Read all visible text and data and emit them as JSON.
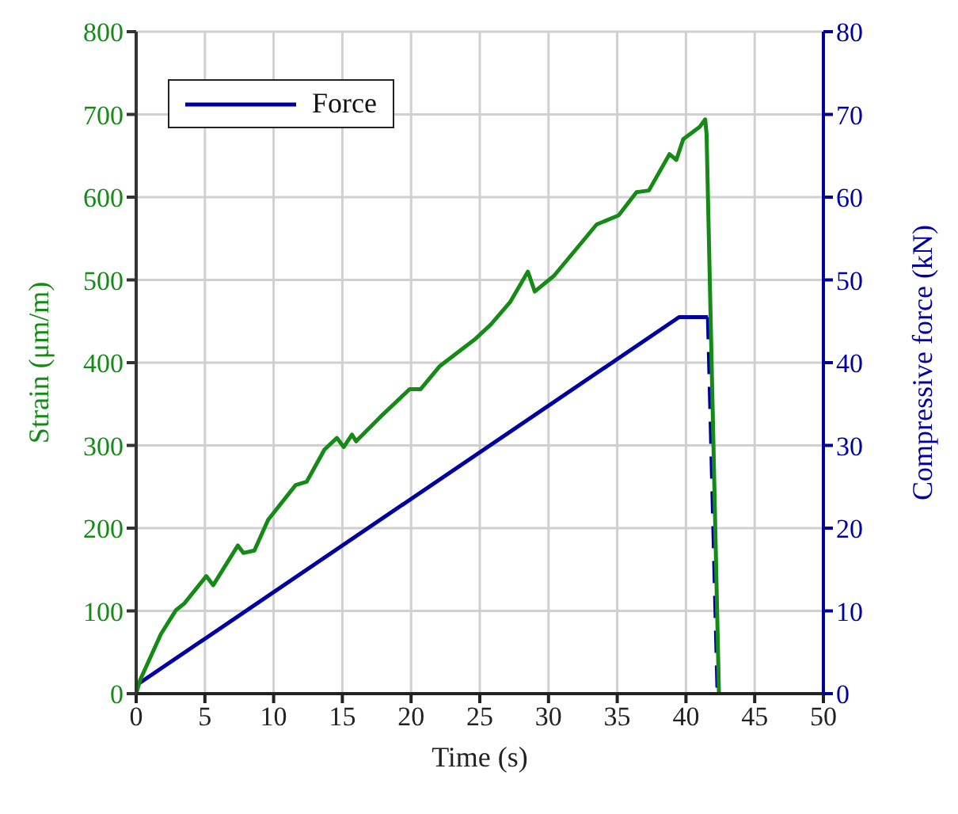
{
  "chart_data": {
    "type": "line",
    "xlabel": "Time (s)",
    "ylabel": "Strain (μm/m)",
    "y2label": "Compressive force (kN)",
    "xlim": [
      0,
      50
    ],
    "xticks": [
      0,
      5,
      10,
      15,
      20,
      25,
      30,
      35,
      40,
      45,
      50
    ],
    "ylim": [
      0,
      800
    ],
    "yticks": [
      0,
      100,
      200,
      300,
      400,
      500,
      600,
      700,
      800
    ],
    "y2lim": [
      0,
      80
    ],
    "y2ticks": [
      0,
      10,
      20,
      30,
      40,
      50,
      60,
      70,
      80
    ],
    "grid": true,
    "legend": "top left",
    "marker": "none",
    "series": [
      {
        "name": "Force",
        "color": "#0000a0",
        "axis": "y2",
        "line_style": "solid",
        "x": [
          0,
          39.5,
          41.6
        ],
        "values": [
          1,
          45.5,
          45.5
        ]
      },
      {
        "color": "#0000a0",
        "axis": "y2",
        "line_style": "dashed",
        "x": [
          41.6,
          42.3
        ],
        "values": [
          45.5,
          0
        ]
      },
      {
        "color": "#168a16",
        "axis": "y",
        "line_style": "solid",
        "x": [
          0,
          0.3,
          1.8,
          2.9,
          3.5,
          5.1,
          5.6,
          7.4,
          7.8,
          8.6,
          9.6,
          11.6,
          12.4,
          13.7,
          14.6,
          15.1,
          15.7,
          16,
          17.8,
          19.9,
          20.7,
          22.1,
          24.7,
          25.8,
          27.2,
          28.5,
          29,
          30.4,
          33.5,
          35.1,
          36.4,
          37.3,
          38.8,
          39.3,
          39.8,
          41,
          41.4,
          41.5,
          42.4
        ],
        "values": [
          0,
          17,
          72,
          101,
          109,
          142,
          131,
          179,
          170,
          173,
          210,
          252,
          256,
          295,
          309,
          298,
          313,
          305,
          335,
          368,
          368,
          396,
          429,
          446,
          473,
          510,
          486,
          505,
          567,
          578,
          606,
          608,
          652,
          645,
          670,
          685,
          694,
          676,
          0
        ]
      }
    ]
  }
}
